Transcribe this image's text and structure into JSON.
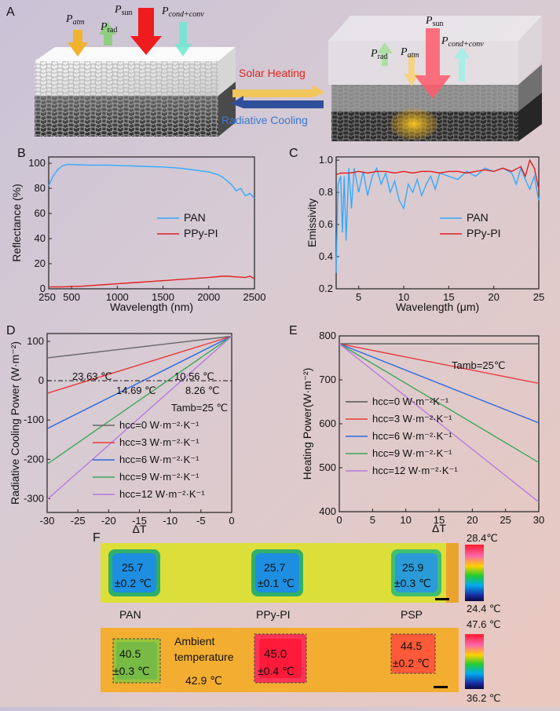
{
  "panels": {
    "a": "A",
    "b": "B",
    "c": "C",
    "d": "D",
    "e": "E",
    "f": "F"
  },
  "schematic": {
    "left_labels": [
      "P",
      "atm",
      "P",
      "sun",
      "P",
      "rad",
      "P",
      "cond+conv"
    ],
    "right_labels": [
      "P",
      "sun",
      "P",
      "rad",
      "P",
      "atm",
      "P",
      "cond+conv"
    ],
    "solar_heating": "Solar Heating",
    "radiative_cooling": "Radiative Cooling",
    "colors": {
      "solar": "#ff2020",
      "cooling": "#3a6fd8"
    }
  },
  "chart_data": [
    {
      "id": "B",
      "type": "line",
      "xlabel": "Wavelength (nm)",
      "ylabel": "Reflectance (%)",
      "xlim": [
        250,
        2500
      ],
      "ylim": [
        0,
        105
      ],
      "xticks": [
        500,
        1000,
        1500,
        2000,
        2500
      ],
      "yticks": [
        0,
        20,
        40,
        60,
        80,
        100
      ],
      "series": [
        {
          "name": "PAN",
          "color": "#33aaff",
          "x": [
            250,
            300,
            350,
            400,
            450,
            500,
            700,
            900,
            1100,
            1300,
            1500,
            1700,
            1800,
            1900,
            2000,
            2050,
            2100,
            2150,
            2200,
            2250,
            2300,
            2350,
            2400,
            2450,
            2500
          ],
          "y": [
            82,
            90,
            95,
            98,
            99,
            99,
            98.5,
            98.5,
            98,
            97.5,
            97,
            96,
            95,
            94,
            93,
            92,
            91,
            89,
            86,
            83,
            78,
            80,
            74,
            76,
            72
          ]
        },
        {
          "name": "PPy-PI",
          "color": "#e02020",
          "x": [
            250,
            400,
            600,
            800,
            1000,
            1200,
            1400,
            1600,
            1800,
            2000,
            2150,
            2200,
            2300,
            2400,
            2450,
            2500
          ],
          "y": [
            1.5,
            1.5,
            2,
            3,
            4,
            5,
            6,
            7,
            8,
            9,
            10,
            10,
            9.5,
            9,
            10,
            8
          ]
        }
      ]
    },
    {
      "id": "C",
      "type": "line",
      "xlabel": "Wavelength (μm)",
      "ylabel": "Emissivity",
      "xlim": [
        2.5,
        25
      ],
      "ylim": [
        0.2,
        1.02
      ],
      "xticks": [
        5,
        10,
        15,
        20,
        25
      ],
      "yticks": [
        0.2,
        0.4,
        0.6,
        0.8,
        1.0
      ],
      "series": [
        {
          "name": "PAN",
          "color": "#33aaff",
          "x": [
            2.5,
            2.7,
            3.0,
            3.2,
            3.4,
            3.6,
            3.9,
            4.2,
            4.5,
            5.0,
            5.5,
            6.0,
            6.5,
            7.0,
            7.5,
            8.0,
            8.5,
            9.0,
            9.5,
            10.0,
            10.5,
            11.0,
            11.5,
            12.0,
            12.5,
            13.0,
            13.5,
            14.0,
            15.0,
            16.0,
            17.0,
            18.0,
            19.0,
            20.0,
            21.0,
            22.0,
            22.5,
            23.0,
            23.5,
            24.0,
            24.5,
            25.0
          ],
          "y": [
            0.3,
            0.85,
            0.9,
            0.55,
            0.9,
            0.5,
            0.95,
            0.7,
            0.95,
            0.8,
            0.93,
            0.78,
            0.9,
            0.95,
            0.85,
            0.92,
            0.8,
            0.87,
            0.75,
            0.7,
            0.85,
            0.8,
            0.88,
            0.78,
            0.85,
            0.9,
            0.82,
            0.92,
            0.9,
            0.88,
            0.93,
            0.9,
            0.95,
            0.93,
            0.95,
            0.92,
            0.85,
            0.95,
            0.88,
            0.82,
            0.9,
            0.75
          ]
        },
        {
          "name": "PPy-PI",
          "color": "#e02020",
          "x": [
            2.5,
            3,
            4,
            5,
            6,
            7,
            8,
            9,
            10,
            11,
            12,
            13,
            14,
            15,
            16,
            17,
            18,
            19,
            20,
            21,
            22,
            23,
            23.5,
            24,
            24.5,
            25
          ],
          "y": [
            0.91,
            0.92,
            0.92,
            0.93,
            0.92,
            0.93,
            0.93,
            0.92,
            0.93,
            0.92,
            0.93,
            0.93,
            0.92,
            0.93,
            0.93,
            0.92,
            0.93,
            0.94,
            0.93,
            0.95,
            0.93,
            0.96,
            0.9,
            1.0,
            0.95,
            0.82
          ]
        }
      ]
    },
    {
      "id": "D",
      "type": "line",
      "xlabel": "ΔT",
      "ylabel": "Radiative Cooling Power (W·m⁻²)",
      "xlim": [
        -30,
        0
      ],
      "ylim": [
        -335,
        120
      ],
      "xticks": [
        -30,
        -25,
        -20,
        -15,
        -10,
        -5,
        0
      ],
      "yticks": [
        -300,
        -200,
        -100,
        0,
        100
      ],
      "annotations": [
        "23.63 ℃",
        "10.56 ℃",
        "14.69 ℃",
        "8.26 ℃"
      ],
      "tamb": "Tamb=25 ℃",
      "series": [
        {
          "name": "hcc=0 W·m⁻²·K⁻¹",
          "color": "#666666",
          "x": [
            -30,
            0
          ],
          "y": [
            58,
            113
          ]
        },
        {
          "name": "hcc=3 W·m⁻²·K⁻¹",
          "color": "#e83a3a",
          "x": [
            -30,
            0
          ],
          "y": [
            -32,
            113
          ]
        },
        {
          "name": "hcc=6 W·m⁻²·K⁻¹",
          "color": "#2a6bdc",
          "x": [
            -30,
            0
          ],
          "y": [
            -122,
            113
          ]
        },
        {
          "name": "hcc=9 W·m⁻²·K⁻¹",
          "color": "#3da85a",
          "x": [
            -30,
            0
          ],
          "y": [
            -212,
            113
          ]
        },
        {
          "name": "hcc=12 W·m⁻²·K⁻¹",
          "color": "#b77be0",
          "x": [
            -30,
            0
          ],
          "y": [
            -302,
            113
          ]
        }
      ]
    },
    {
      "id": "E",
      "type": "line",
      "xlabel": "ΔT",
      "ylabel": "Heating Power(W·m⁻²)",
      "xlim": [
        0,
        30
      ],
      "ylim": [
        400,
        800
      ],
      "xticks": [
        0,
        5,
        10,
        15,
        20,
        25,
        30
      ],
      "yticks": [
        400,
        500,
        600,
        700,
        800
      ],
      "tamb": "Tamb=25℃",
      "series": [
        {
          "name": "hcc=0 W·m⁻²K⁻¹",
          "color": "#555555",
          "x": [
            0,
            30
          ],
          "y": [
            782,
            782
          ]
        },
        {
          "name": "hcc=3 W·m⁻²·K⁻¹",
          "color": "#e83a3a",
          "x": [
            0,
            30
          ],
          "y": [
            782,
            692
          ]
        },
        {
          "name": "hcc=6 W·m⁻²·K⁻¹",
          "color": "#2a6bdc",
          "x": [
            0,
            30
          ],
          "y": [
            782,
            602
          ]
        },
        {
          "name": "hcc=9 W·m⁻²·K⁻¹",
          "color": "#3da85a",
          "x": [
            0,
            30
          ],
          "y": [
            782,
            512
          ]
        },
        {
          "name": "hcc=12 W·m⁻²·K⁻¹",
          "color": "#b77be0",
          "x": [
            0,
            30
          ],
          "y": [
            782,
            422
          ]
        }
      ]
    }
  ],
  "thermal": {
    "top": {
      "samples": [
        {
          "temp": "25.7",
          "err": "±0.2 ℃"
        },
        {
          "temp": "25.7",
          "err": "±0.1 ℃"
        },
        {
          "temp": "25.9",
          "err": "±0.3 ℃"
        }
      ],
      "scale_max": "28.4℃",
      "scale_min": "24.4 ℃"
    },
    "labels": [
      "PAN",
      "PPy-PI",
      "PSP"
    ],
    "bottom": {
      "samples": [
        {
          "temp": "40.5",
          "err": "±0.3 ℃"
        },
        {
          "temp": "45.0",
          "err": "±0.4 ℃"
        },
        {
          "temp": "44.5",
          "err": "±0.2 ℃"
        }
      ],
      "ambient_1": "Ambient",
      "ambient_2": "temperature",
      "ambient_value": "42.9 ℃",
      "scale_max": "47.6 ℃",
      "scale_min": "36.2 ℃"
    }
  }
}
